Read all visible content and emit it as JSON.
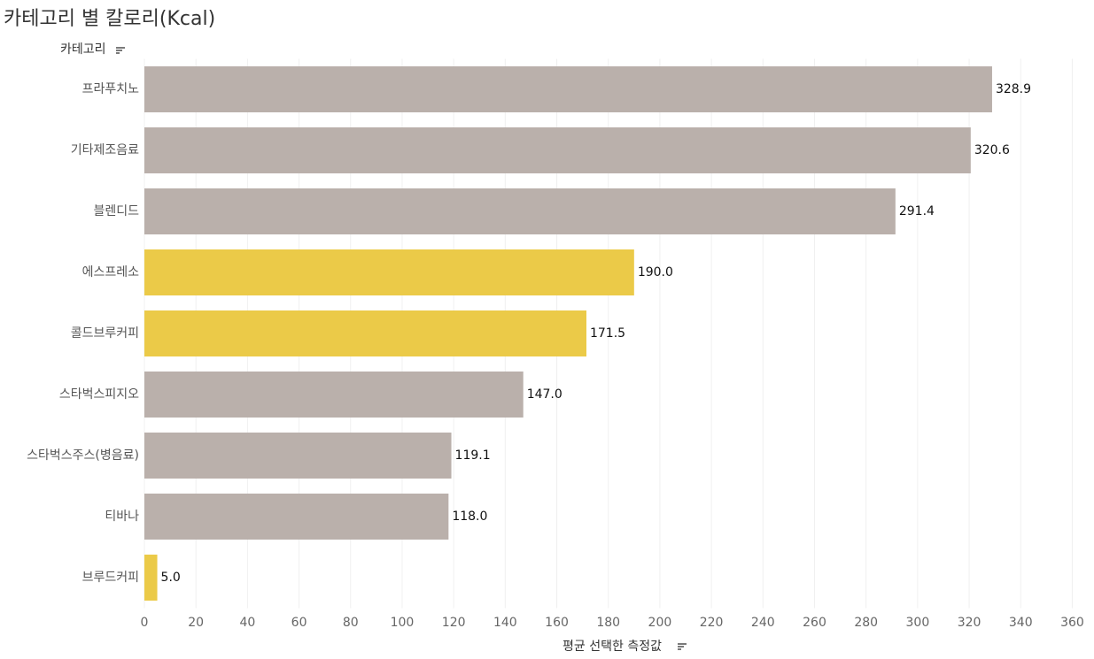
{
  "chart_data": {
    "type": "bar",
    "orientation": "horizontal",
    "title": "카테고리 별 칼로리(Kcal)",
    "y_label": "카테고리",
    "x_label": "평균 선택한 측정값",
    "categories": [
      "프라푸치노",
      "기타제조음료",
      "블렌디드",
      "에스프레소",
      "콜드브루커피",
      "스타벅스피지오",
      "스타벅스주스(병음료)",
      "티바나",
      "브루드커피"
    ],
    "values": [
      328.9,
      320.6,
      291.4,
      190,
      171.5,
      147,
      119.1,
      118,
      5
    ],
    "value_labels": [
      "328.9",
      "320.6",
      "291.4",
      "190.0",
      "171.5",
      "147.0",
      "119.1",
      "118.0",
      "5.0"
    ],
    "colors": [
      "#bab0ab",
      "#bab0ab",
      "#bab0ab",
      "#ebca48",
      "#ebca48",
      "#bab0ab",
      "#bab0ab",
      "#bab0ab",
      "#ebca48"
    ],
    "xlim": [
      0,
      365
    ],
    "xticks": [
      0,
      20,
      40,
      60,
      80,
      100,
      120,
      140,
      160,
      180,
      200,
      220,
      240,
      260,
      280,
      300,
      320,
      340,
      360
    ],
    "grid": true
  }
}
